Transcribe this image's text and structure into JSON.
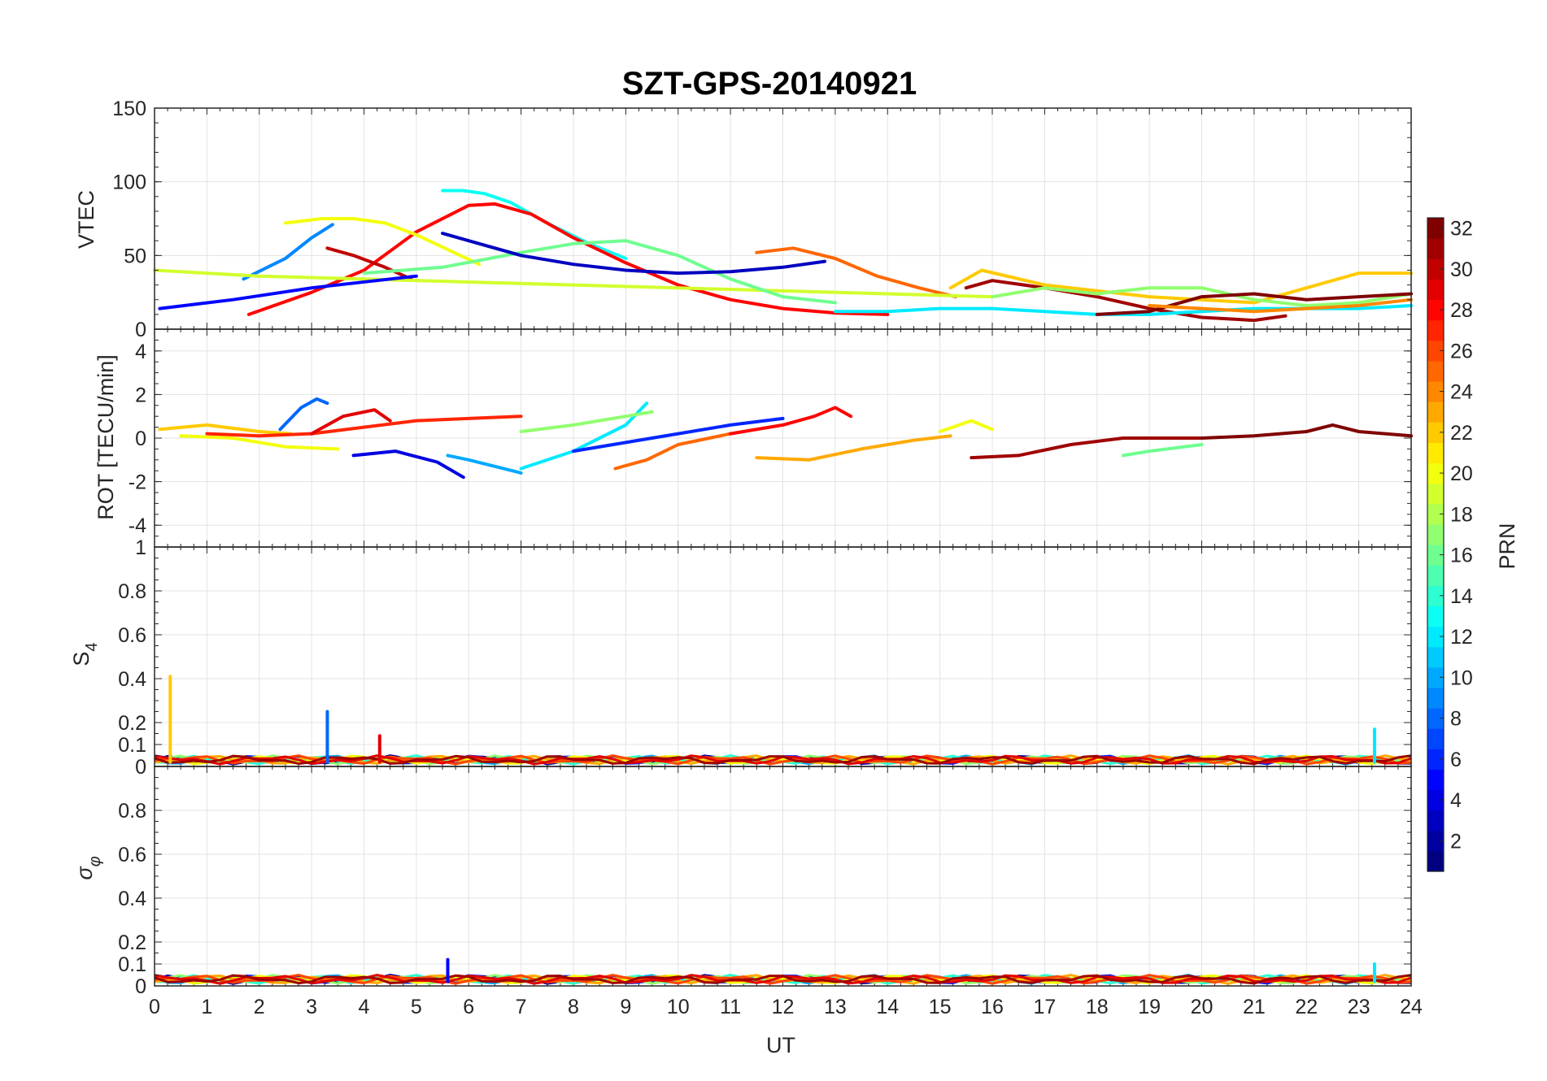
{
  "chart_data": [
    {
      "type": "line",
      "panel": "vtec",
      "title": "SZT-GPS-20140921",
      "ylabel": "VTEC",
      "xlabel": "",
      "xlim": [
        0,
        24
      ],
      "ylim": [
        0,
        150
      ],
      "yticks": [
        0,
        50,
        100,
        150
      ],
      "ytick_labels": [
        "0",
        "50",
        "100",
        "150"
      ],
      "grid": true,
      "series": [
        {
          "name": "PRN 9",
          "prn": 9,
          "x": [
            1.7,
            2.5,
            3.0,
            3.4
          ],
          "y": [
            34,
            48,
            62,
            71
          ]
        },
        {
          "name": "PRN 13",
          "prn": 13,
          "x": [
            5.5,
            5.9,
            6.3,
            6.8,
            7.5,
            8.3,
            9.0
          ],
          "y": [
            94,
            94,
            92,
            86,
            72,
            58,
            48
          ]
        },
        {
          "name": "PRN 28",
          "prn": 28,
          "x": [
            1.8,
            3.0,
            4.0,
            5.0,
            6.0,
            6.5,
            7.2,
            8.0,
            9.0,
            10.0,
            11.0,
            12.0,
            13.0,
            14.0
          ],
          "y": [
            10,
            25,
            40,
            66,
            84,
            85,
            78,
            62,
            45,
            30,
            20,
            14,
            11,
            10
          ]
        },
        {
          "name": "PRN 20",
          "prn": 20,
          "x": [
            2.5,
            3.2,
            3.8,
            4.4,
            5.0,
            5.6,
            6.2
          ],
          "y": [
            72,
            75,
            75,
            72,
            64,
            54,
            44
          ]
        },
        {
          "name": "PRN 25",
          "prn": 25,
          "x": [
            11.5,
            12.2,
            13.0,
            13.8,
            14.6,
            15.3
          ],
          "y": [
            52,
            55,
            48,
            36,
            28,
            22
          ]
        },
        {
          "name": "PRN 30",
          "prn": 30,
          "x": [
            3.3,
            3.8,
            4.4,
            4.9
          ],
          "y": [
            55,
            50,
            42,
            34
          ]
        },
        {
          "name": "PRN 19",
          "prn": 19,
          "x": [
            0.0,
            2.0,
            4.0,
            6.0,
            8.0,
            10.0,
            12.0,
            14.0,
            16.0
          ],
          "y": [
            40,
            36,
            34,
            32,
            30,
            28,
            26,
            24,
            22
          ]
        },
        {
          "name": "PRN 16",
          "prn": 16,
          "x": [
            4.0,
            5.5,
            7.0,
            8.0,
            9.0,
            10.0,
            11.0,
            12.0,
            13.0
          ],
          "y": [
            38,
            42,
            52,
            58,
            60,
            50,
            34,
            22,
            18
          ]
        },
        {
          "name": "PRN 5",
          "prn": 5,
          "x": [
            0.1,
            1.5,
            3.0,
            4.5,
            5.0
          ],
          "y": [
            14,
            20,
            28,
            34,
            36
          ]
        },
        {
          "name": "PRN 3",
          "prn": 3,
          "x": [
            5.5,
            6.2,
            7.0,
            8.0,
            9.0,
            10.0,
            11.0,
            12.0,
            12.8
          ],
          "y": [
            65,
            58,
            50,
            44,
            40,
            38,
            39,
            42,
            46
          ]
        },
        {
          "name": "PRN 31",
          "prn": 31,
          "x": [
            15.5,
            16.0,
            17.0,
            18.0,
            19.0,
            20.0,
            21.0,
            21.6
          ],
          "y": [
            28,
            33,
            28,
            22,
            14,
            8,
            6,
            9
          ]
        },
        {
          "name": "PRN 22",
          "prn": 22,
          "x": [
            15.2,
            15.8,
            17.0,
            19.0,
            21.0,
            22.0,
            23.0,
            24.0
          ],
          "y": [
            28,
            40,
            30,
            22,
            18,
            28,
            38,
            38
          ]
        },
        {
          "name": "PRN 17",
          "prn": 17,
          "x": [
            16.0,
            17.0,
            18.0,
            19.0,
            20.0,
            21.0,
            22.0,
            23.0,
            24.0
          ],
          "y": [
            22,
            28,
            24,
            28,
            28,
            20,
            16,
            18,
            24
          ]
        },
        {
          "name": "PRN 12",
          "prn": 12,
          "x": [
            13.0,
            14.0,
            15.0,
            16.0,
            17.0,
            18.0,
            19.0,
            20.0,
            21.0,
            22.0,
            23.0,
            24.0
          ],
          "y": [
            12,
            12,
            14,
            14,
            12,
            10,
            10,
            12,
            14,
            14,
            14,
            16
          ]
        },
        {
          "name": "PRN 32",
          "prn": 32,
          "x": [
            18.0,
            19.0,
            20.0,
            21.0,
            22.0,
            23.0,
            24.0
          ],
          "y": [
            10,
            12,
            22,
            24,
            20,
            22,
            24
          ]
        },
        {
          "name": "PRN 24",
          "prn": 24,
          "x": [
            19.0,
            20.0,
            21.0,
            22.0,
            23.0,
            24.0
          ],
          "y": [
            16,
            14,
            12,
            14,
            16,
            20
          ]
        }
      ]
    },
    {
      "type": "line",
      "panel": "rot",
      "ylabel": "ROT [TECU/min]",
      "xlabel": "",
      "xlim": [
        0,
        24
      ],
      "ylim": [
        -5,
        5
      ],
      "yticks": [
        -4,
        -2,
        0,
        2,
        4
      ],
      "ytick_labels": [
        "-4",
        "-2",
        "0",
        "2",
        "4"
      ],
      "grid": true,
      "series": [
        {
          "name": "PRN 22",
          "prn": 22,
          "x": [
            0.1,
            1.0,
            2.0,
            2.6
          ],
          "y": [
            0.4,
            0.6,
            0.3,
            0.2
          ]
        },
        {
          "name": "PRN 20",
          "prn": 20,
          "x": [
            0.5,
            1.5,
            2.5,
            3.5
          ],
          "y": [
            0.1,
            0.0,
            -0.4,
            -0.5
          ]
        },
        {
          "name": "PRN 27",
          "prn": 27,
          "x": [
            1.0,
            2.0,
            3.0,
            4.0,
            5.0,
            6.0,
            7.0
          ],
          "y": [
            0.2,
            0.1,
            0.2,
            0.5,
            0.8,
            0.9,
            1.0
          ]
        },
        {
          "name": "PRN 8",
          "prn": 8,
          "x": [
            2.4,
            2.8,
            3.1,
            3.3
          ],
          "y": [
            0.4,
            1.4,
            1.8,
            1.6
          ]
        },
        {
          "name": "PRN 29",
          "prn": 29,
          "x": [
            3.0,
            3.6,
            4.2,
            4.5
          ],
          "y": [
            0.2,
            1.0,
            1.3,
            0.8
          ]
        },
        {
          "name": "PRN 4",
          "prn": 4,
          "x": [
            3.8,
            4.6,
            5.4,
            5.9
          ],
          "y": [
            -0.8,
            -0.6,
            -1.1,
            -1.8
          ]
        },
        {
          "name": "PRN 10",
          "prn": 10,
          "x": [
            5.6,
            6.0,
            6.5,
            7.0
          ],
          "y": [
            -0.8,
            -1.0,
            -1.3,
            -1.6
          ]
        },
        {
          "name": "PRN 12",
          "prn": 12,
          "x": [
            7.0,
            8.0,
            9.0,
            9.4
          ],
          "y": [
            -1.4,
            -0.6,
            0.6,
            1.6
          ]
        },
        {
          "name": "PRN 17",
          "prn": 17,
          "x": [
            7.0,
            8.0,
            9.0,
            9.5
          ],
          "y": [
            0.3,
            0.6,
            1.0,
            1.2
          ]
        },
        {
          "name": "PRN 6",
          "prn": 6,
          "x": [
            8.0,
            9.0,
            10.0,
            11.0,
            12.0
          ],
          "y": [
            -0.6,
            -0.2,
            0.2,
            0.6,
            0.9
          ]
        },
        {
          "name": "PRN 25",
          "prn": 25,
          "x": [
            8.8,
            9.4,
            10.0,
            11.0
          ],
          "y": [
            -1.4,
            -1.0,
            -0.3,
            0.2
          ]
        },
        {
          "name": "PRN 28",
          "prn": 28,
          "x": [
            11.0,
            12.0,
            12.6,
            13.0,
            13.3
          ],
          "y": [
            0.2,
            0.6,
            1.0,
            1.4,
            1.0
          ]
        },
        {
          "name": "PRN 23",
          "prn": 23,
          "x": [
            11.5,
            12.5,
            13.5,
            14.5,
            15.2
          ],
          "y": [
            -0.9,
            -1.0,
            -0.5,
            -0.1,
            0.1
          ]
        },
        {
          "name": "PRN 20",
          "prn": 20,
          "x": [
            15.0,
            15.6,
            16.0
          ],
          "y": [
            0.3,
            0.8,
            0.4
          ]
        },
        {
          "name": "PRN 31",
          "prn": 31,
          "x": [
            15.6,
            16.5,
            17.5,
            18.5,
            20.0
          ],
          "y": [
            -0.9,
            -0.8,
            -0.3,
            0.0,
            0.0
          ]
        },
        {
          "name": "PRN 16",
          "prn": 16,
          "x": [
            18.5,
            19.0,
            20.0
          ],
          "y": [
            -0.8,
            -0.6,
            -0.3
          ]
        },
        {
          "name": "PRN 32",
          "prn": 32,
          "x": [
            20.0,
            21.0,
            22.0,
            22.5,
            23.0,
            24.0
          ],
          "y": [
            0.0,
            0.1,
            0.3,
            0.6,
            0.3,
            0.1
          ]
        }
      ]
    },
    {
      "type": "line",
      "panel": "s4",
      "ylabel": "S4",
      "ylabel_main": "S",
      "ylabel_sub": "4",
      "xlabel": "",
      "xlim": [
        0,
        24
      ],
      "ylim": [
        0,
        1
      ],
      "yticks": [
        0,
        0.1,
        0.2,
        0.4,
        0.6,
        0.8,
        1
      ],
      "ytick_labels": [
        "0",
        "0.1",
        "0.2",
        "0.4",
        "0.6",
        "0.8",
        "1"
      ],
      "grid": true,
      "spikes": [
        {
          "prn": 22,
          "x": 0.3,
          "y": 0.41
        },
        {
          "prn": 8,
          "x": 3.3,
          "y": 0.25
        },
        {
          "prn": 29,
          "x": 4.3,
          "y": 0.14
        },
        {
          "prn": 12,
          "x": 23.3,
          "y": 0.17
        }
      ]
    },
    {
      "type": "line",
      "panel": "sigma_phi",
      "ylabel": "σφ",
      "ylabel_main": "σ",
      "ylabel_sub": "φ",
      "xlabel": "UT",
      "xlim": [
        0,
        24
      ],
      "ylim": [
        0,
        1
      ],
      "yticks": [
        0,
        0.1,
        0.2,
        0.4,
        0.6,
        0.8
      ],
      "ytick_labels": [
        "0",
        "0.1",
        "0.2",
        "0.4",
        "0.6",
        "0.8"
      ],
      "xticks": [
        0,
        1,
        2,
        3,
        4,
        5,
        6,
        7,
        8,
        9,
        10,
        11,
        12,
        13,
        14,
        15,
        16,
        17,
        18,
        19,
        20,
        21,
        22,
        23,
        24
      ],
      "xtick_labels": [
        "0",
        "1",
        "2",
        "3",
        "4",
        "5",
        "6",
        "7",
        "8",
        "9",
        "10",
        "11",
        "12",
        "13",
        "14",
        "15",
        "16",
        "17",
        "18",
        "19",
        "20",
        "21",
        "22",
        "23",
        "24"
      ],
      "grid": true,
      "spikes": [
        {
          "prn": 5,
          "x": 5.6,
          "y": 0.12
        },
        {
          "prn": 12,
          "x": 23.3,
          "y": 0.1
        }
      ]
    }
  ],
  "colorbar": {
    "label": "PRN",
    "range": [
      1,
      32
    ],
    "ticks": [
      2,
      4,
      6,
      8,
      10,
      12,
      14,
      16,
      18,
      20,
      22,
      24,
      26,
      28,
      30,
      32
    ],
    "tick_labels": [
      "2",
      "4",
      "6",
      "8",
      "10",
      "12",
      "14",
      "16",
      "18",
      "20",
      "22",
      "24",
      "26",
      "28",
      "30",
      "32"
    ],
    "colormap": "jet"
  }
}
